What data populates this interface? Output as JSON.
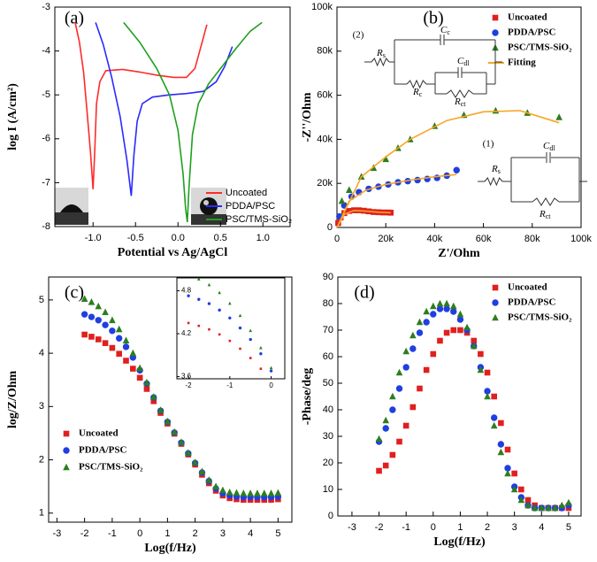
{
  "chart_data": [
    {
      "type": "line",
      "panel_label": "(a)",
      "x_label": "Potential vs Ag/AgCl",
      "y_label": "log I (A/cm²)",
      "xlim": [
        -1.45,
        1.32
      ],
      "ylim": [
        -8,
        -3
      ],
      "xticks": [
        {
          "value": -1,
          "label": "-1.0"
        },
        -0.5,
        {
          "value": 0,
          "label": "0.0"
        },
        0.5,
        {
          "value": 1,
          "label": "1.0"
        }
      ],
      "yticks": [
        -8,
        -7,
        -6,
        -5,
        -4,
        -3
      ],
      "legend": "lower right",
      "series": [
        {
          "name": "Uncoated",
          "color": "#ff2a2a",
          "line": true,
          "x": [
            -1.21,
            -1.16,
            -1.11,
            -1.07,
            -1.03,
            -1.0,
            -0.98,
            -0.96,
            -0.92,
            -0.85,
            -0.65,
            -0.45,
            -0.25,
            -0.05,
            0.1,
            0.2,
            0.27,
            0.34
          ],
          "values": [
            -3.35,
            -3.8,
            -4.5,
            -5.4,
            -6.3,
            -7.15,
            -6.3,
            -5.2,
            -4.7,
            -4.45,
            -4.42,
            -4.48,
            -4.55,
            -4.6,
            -4.6,
            -4.4,
            -3.9,
            -3.4
          ]
        },
        {
          "name": "PDDA/PSC",
          "color": "#2a2aff",
          "line": true,
          "x": [
            -0.97,
            -0.88,
            -0.78,
            -0.68,
            -0.6,
            -0.55,
            -0.52,
            -0.48,
            -0.42,
            -0.3,
            -0.1,
            0.1,
            0.3,
            0.45,
            0.55,
            0.64
          ],
          "values": [
            -3.35,
            -3.85,
            -4.6,
            -5.5,
            -6.5,
            -7.3,
            -6.4,
            -5.6,
            -5.2,
            -5.05,
            -5.0,
            -4.97,
            -4.92,
            -4.7,
            -4.35,
            -3.9
          ]
        },
        {
          "name": "PSC/TMS-SiO₂",
          "color": "#1fa01f",
          "line": true,
          "x": [
            -0.64,
            -0.45,
            -0.25,
            -0.1,
            0.0,
            0.06,
            0.09,
            0.11,
            0.13,
            0.17,
            0.24,
            0.36,
            0.52,
            0.68,
            0.85,
            0.99
          ],
          "values": [
            -3.35,
            -3.8,
            -4.4,
            -5.0,
            -5.8,
            -6.8,
            -7.6,
            -7.9,
            -7.1,
            -5.9,
            -5.2,
            -4.75,
            -4.35,
            -3.95,
            -3.55,
            -3.35
          ]
        }
      ]
    },
    {
      "type": "scatter",
      "panel_label": "(b)",
      "x_label": "Z'/Ohm",
      "y_label": "-Z''/Ohm",
      "xlim": [
        0,
        100000
      ],
      "ylim": [
        0,
        100000
      ],
      "xticks": [
        0,
        {
          "value": 20000,
          "label": "20k"
        },
        {
          "value": 40000,
          "label": "40k"
        },
        {
          "value": 60000,
          "label": "60k"
        },
        {
          "value": 80000,
          "label": "80k"
        },
        {
          "value": 100000,
          "label": "100k"
        }
      ],
      "yticks": [
        0,
        {
          "value": 20000,
          "label": "20k"
        },
        {
          "value": 40000,
          "label": "40k"
        },
        {
          "value": 60000,
          "label": "60k"
        },
        {
          "value": 80000,
          "label": "80k"
        },
        {
          "value": 100000,
          "label": "100k"
        }
      ],
      "legend": "upper right",
      "series": [
        {
          "name": "Uncoated",
          "color": "#e0201e",
          "marker": "square",
          "x": [
            500,
            1500,
            3000,
            5000,
            7000,
            9000,
            11000,
            13000,
            15000,
            17000,
            19000,
            21000,
            22000
          ],
          "values": [
            2000,
            4500,
            6500,
            7500,
            7800,
            7800,
            7600,
            7300,
            7000,
            6900,
            6800,
            6800,
            6700
          ]
        },
        {
          "name": "PDDA/PSC",
          "color": "#1f3fe0",
          "marker": "circle",
          "x": [
            1000,
            3000,
            6000,
            9000,
            13000,
            17000,
            21000,
            25000,
            29000,
            33000,
            37000,
            41000,
            45000,
            49000
          ],
          "values": [
            5000,
            10000,
            14000,
            16000,
            17500,
            18500,
            19500,
            20500,
            21000,
            21500,
            22000,
            22500,
            23500,
            26000
          ]
        },
        {
          "name": "PSC/TMS-SiO₂",
          "color": "#2e7d1e",
          "marker": "triangle",
          "x": [
            2000,
            5000,
            10000,
            15000,
            20000,
            25000,
            30000,
            40000,
            52000,
            65000,
            78000,
            91000
          ],
          "values": [
            12000,
            17000,
            23000,
            27000,
            31000,
            36000,
            40000,
            46000,
            51000,
            53000,
            52000,
            50000
          ]
        },
        {
          "name": "Fitting",
          "color": "#f5a623",
          "line": true,
          "x": [
            0,
            3000,
            7000,
            12000,
            17000,
            22000,
            null,
            0,
            5000,
            12000,
            20000,
            30000,
            40000,
            49000,
            null,
            0,
            10000,
            20000,
            30000,
            45000,
            60000,
            75000,
            91000
          ],
          "values": [
            0,
            6000,
            7700,
            7400,
            6900,
            6700,
            null,
            0,
            12000,
            17000,
            19500,
            21500,
            23000,
            24000,
            null,
            0,
            23000,
            32000,
            40000,
            48500,
            52500,
            53000,
            47500
          ]
        }
      ],
      "circuits": [
        {
          "label": "(2)",
          "components": [
            {
              "main": "R",
              "sub": "s"
            },
            {
              "main": "C",
              "sub": "c"
            },
            {
              "main": "C",
              "sub": "dl"
            },
            {
              "main": "R",
              "sub": "c"
            },
            {
              "main": "R",
              "sub": "ct"
            }
          ]
        },
        {
          "label": "(1)",
          "components": [
            {
              "main": "R",
              "sub": "s"
            },
            {
              "main": "C",
              "sub": "dl"
            },
            {
              "main": "R",
              "sub": "ct"
            }
          ]
        }
      ]
    },
    {
      "type": "scatter",
      "panel_label": "(c)",
      "x_label": "Log(f/Hz)",
      "y_label": "log/Z/Ohm",
      "xlim": [
        -3.3,
        5.5
      ],
      "ylim": [
        0.83,
        5.43
      ],
      "xticks": [
        -3,
        -2,
        -1,
        0,
        1,
        2,
        3,
        4,
        5
      ],
      "yticks": [
        1,
        2,
        3,
        4,
        5
      ],
      "legend": "lower left",
      "x": [
        -2,
        -1.75,
        -1.5,
        -1.25,
        -1,
        -0.75,
        -0.5,
        -0.25,
        0,
        0.25,
        0.5,
        0.75,
        1,
        1.25,
        1.5,
        1.75,
        2,
        2.25,
        2.5,
        2.75,
        3,
        3.25,
        3.5,
        3.75,
        4,
        4.25,
        4.5,
        4.75,
        5
      ],
      "series": [
        {
          "name": "Uncoated",
          "color": "#e0201e",
          "marker": "square",
          "values": [
            4.35,
            4.31,
            4.26,
            4.19,
            4.1,
            3.99,
            3.86,
            3.71,
            3.54,
            3.33,
            3.1,
            2.88,
            2.68,
            2.49,
            2.3,
            2.1,
            1.91,
            1.72,
            1.56,
            1.42,
            1.33,
            1.28,
            1.26,
            1.25,
            1.25,
            1.25,
            1.25,
            1.25,
            1.26
          ]
        },
        {
          "name": "PDDA/PSC",
          "color": "#1f3fe0",
          "marker": "circle",
          "values": [
            4.73,
            4.68,
            4.62,
            4.53,
            4.42,
            4.28,
            4.12,
            3.92,
            3.68,
            3.43,
            3.17,
            2.92,
            2.71,
            2.51,
            2.32,
            2.12,
            1.94,
            1.76,
            1.6,
            1.46,
            1.37,
            1.33,
            1.31,
            1.3,
            1.3,
            1.3,
            1.3,
            1.3,
            1.31
          ]
        },
        {
          "name": "PSC/TMS-SiO₂",
          "color": "#2e7d1e",
          "marker": "triangle",
          "values": [
            5.02,
            4.96,
            4.88,
            4.77,
            4.62,
            4.45,
            4.24,
            4.0,
            3.72,
            3.45,
            3.18,
            2.93,
            2.72,
            2.52,
            2.33,
            2.13,
            1.95,
            1.78,
            1.62,
            1.5,
            1.43,
            1.39,
            1.38,
            1.37,
            1.37,
            1.37,
            1.37,
            1.37,
            1.38
          ]
        }
      ],
      "inset": {
        "xlim": [
          -2.28,
          0.33
        ],
        "ylim": [
          3.57,
          4.98
        ],
        "xticks": [
          -2,
          -1,
          0
        ],
        "yticks": [
          3.6,
          4.2,
          4.8
        ]
      }
    },
    {
      "type": "scatter",
      "panel_label": "(d)",
      "x_label": "Log(f/Hz)",
      "y_label": "-Phase/deg",
      "xlim": [
        -3.52,
        5.46
      ],
      "ylim": [
        0,
        90
      ],
      "xticks": [
        -3,
        -2,
        -1,
        0,
        1,
        2,
        3,
        4,
        5
      ],
      "yticks": [
        0,
        10,
        20,
        30,
        40,
        50,
        60,
        70,
        80,
        90
      ],
      "legend": "upper right",
      "x": [
        -2,
        -1.75,
        -1.5,
        -1.25,
        -1,
        -0.75,
        -0.5,
        -0.25,
        0,
        0.25,
        0.5,
        0.75,
        1,
        1.25,
        1.5,
        1.75,
        2,
        2.25,
        2.5,
        2.75,
        3,
        3.25,
        3.5,
        3.75,
        4,
        4.25,
        4.5,
        4.75,
        5
      ],
      "series": [
        {
          "name": "Uncoated",
          "color": "#e0201e",
          "marker": "square",
          "values": [
            17,
            19,
            23,
            28,
            34,
            41,
            48,
            55,
            61,
            66,
            69,
            70,
            70,
            69,
            66,
            61,
            54,
            45,
            35,
            25,
            16,
            10,
            6,
            4,
            3,
            3,
            3,
            3,
            3
          ]
        },
        {
          "name": "PDDA/PSC",
          "color": "#1f3fe0",
          "marker": "circle",
          "values": [
            28,
            33,
            40,
            48,
            56,
            63,
            69,
            73,
            76,
            78,
            78,
            77,
            74,
            70,
            64,
            56,
            47,
            37,
            27,
            18,
            11,
            7,
            4,
            3,
            3,
            3,
            3,
            3,
            4
          ]
        },
        {
          "name": "PSC/TMS-SiO₂",
          "color": "#2e7d1e",
          "marker": "triangle",
          "values": [
            29,
            36,
            45,
            54,
            62,
            68,
            73,
            77,
            79,
            80,
            80,
            79,
            76,
            71,
            64,
            55,
            45,
            34,
            24,
            16,
            10,
            6,
            4,
            3,
            3,
            3,
            3,
            4,
            5
          ]
        }
      ]
    }
  ]
}
